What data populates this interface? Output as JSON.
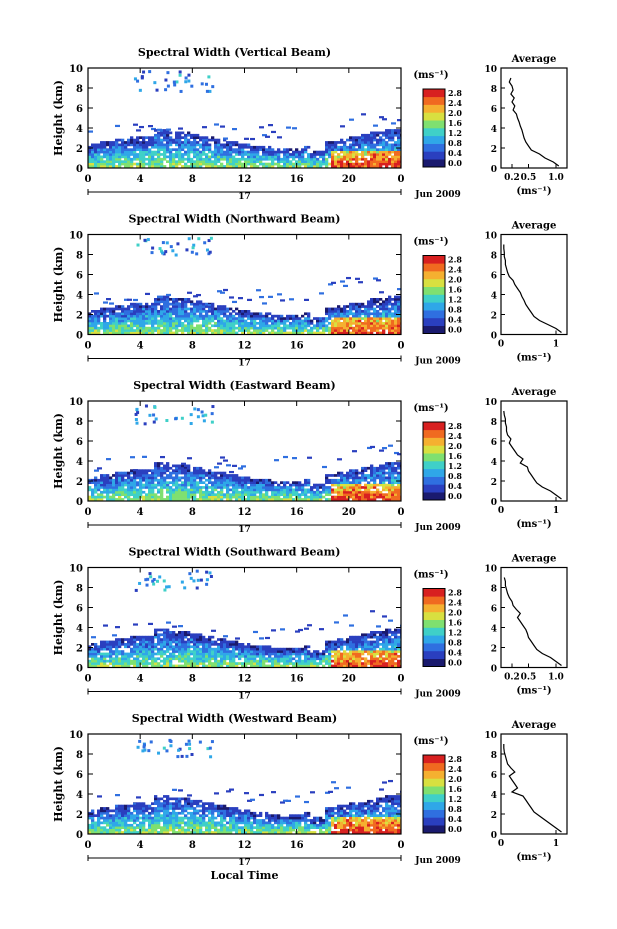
{
  "figure": {
    "xlabel": "Local Time"
  },
  "colorbar": {
    "unit_label": "(ms⁻¹)",
    "ticks": [
      "0.0",
      "0.4",
      "0.8",
      "1.2",
      "1.6",
      "2.0",
      "2.4",
      "2.8"
    ],
    "colors": [
      "#1a1a6e",
      "#2a3fbf",
      "#2f6fe0",
      "#2fa7e8",
      "#3fd0c8",
      "#7fe070",
      "#d8e040",
      "#f5b030",
      "#f06a20",
      "#d82020"
    ]
  },
  "chart_data": [
    {
      "type": "heatmap",
      "title": "Spectral Width (Vertical Beam)",
      "ylabel": "Height (km)",
      "x_ticks": [
        "0",
        "4",
        "8",
        "12",
        "16",
        "20",
        "0"
      ],
      "y_ticks": [
        "0",
        "2",
        "4",
        "6",
        "8",
        "10"
      ],
      "xlim": [
        0,
        24
      ],
      "ylim": [
        0,
        10
      ],
      "date_label": "Jun 2009",
      "day_label": "17",
      "average": {
        "title": "Average",
        "xlabel": "(ms⁻¹)",
        "x_ticks": [
          "0.2",
          "0.5",
          "1.0"
        ],
        "xlim": [
          0.0,
          1.2
        ],
        "height_km": [
          0.2,
          0.6,
          1.0,
          1.4,
          1.8,
          2.2,
          2.6,
          3.0,
          3.4,
          3.8,
          4.2,
          4.6,
          5.0,
          5.4,
          5.8,
          6.2,
          6.6,
          7.0,
          7.4,
          7.8,
          8.2,
          8.6,
          9.0
        ],
        "width_ms": [
          1.05,
          0.95,
          0.8,
          0.7,
          0.55,
          0.5,
          0.45,
          0.42,
          0.4,
          0.38,
          0.35,
          0.33,
          0.3,
          0.28,
          0.22,
          0.25,
          0.2,
          0.24,
          0.18,
          0.22,
          0.2,
          0.15,
          0.18
        ]
      }
    },
    {
      "type": "heatmap",
      "title": "Spectral Width (Northward Beam)",
      "ylabel": "Height (km)",
      "x_ticks": [
        "0",
        "4",
        "8",
        "12",
        "16",
        "20",
        "0"
      ],
      "y_ticks": [
        "0",
        "2",
        "4",
        "6",
        "8",
        "10"
      ],
      "xlim": [
        0,
        24
      ],
      "ylim": [
        0,
        10
      ],
      "date_label": "Jun 2009",
      "day_label": "17",
      "average": {
        "title": "Average",
        "xlabel": "(ms⁻¹)",
        "x_ticks": [
          "0",
          "1"
        ],
        "xlim": [
          0.0,
          1.2
        ],
        "height_km": [
          0.2,
          0.6,
          1.0,
          1.4,
          1.8,
          2.2,
          2.6,
          3.0,
          3.4,
          3.8,
          4.2,
          4.6,
          5.0,
          5.4,
          5.8,
          6.2,
          6.6,
          7.0,
          7.4,
          7.8,
          8.2,
          8.6,
          9.0
        ],
        "width_ms": [
          1.1,
          1.0,
          0.85,
          0.7,
          0.6,
          0.55,
          0.5,
          0.45,
          0.42,
          0.38,
          0.35,
          0.3,
          0.25,
          0.22,
          0.15,
          0.12,
          0.1,
          0.08,
          0.08,
          0.06,
          0.06,
          0.05,
          0.05
        ]
      }
    },
    {
      "type": "heatmap",
      "title": "Spectral Width (Eastward Beam)",
      "ylabel": "Height (km)",
      "x_ticks": [
        "0",
        "4",
        "8",
        "12",
        "16",
        "20",
        "0"
      ],
      "y_ticks": [
        "0",
        "2",
        "4",
        "6",
        "8",
        "10"
      ],
      "xlim": [
        0,
        24
      ],
      "ylim": [
        0,
        10
      ],
      "date_label": "Jun 2009",
      "day_label": "17",
      "average": {
        "title": "Average",
        "xlabel": "(ms⁻¹)",
        "x_ticks": [
          "0",
          "1"
        ],
        "xlim": [
          0.0,
          1.2
        ],
        "height_km": [
          0.2,
          0.6,
          1.0,
          1.4,
          1.8,
          2.2,
          2.6,
          3.0,
          3.4,
          3.8,
          4.2,
          4.6,
          5.0,
          5.4,
          5.8,
          6.2,
          6.6,
          7.0,
          7.4,
          7.8,
          8.2,
          8.6,
          9.0
        ],
        "width_ms": [
          1.1,
          1.0,
          0.9,
          0.75,
          0.65,
          0.6,
          0.55,
          0.5,
          0.48,
          0.35,
          0.4,
          0.3,
          0.25,
          0.2,
          0.15,
          0.18,
          0.12,
          0.1,
          0.1,
          0.08,
          0.08,
          0.06,
          0.05
        ]
      }
    },
    {
      "type": "heatmap",
      "title": "Spectral Width (Southward Beam)",
      "ylabel": "Height (km)",
      "x_ticks": [
        "0",
        "4",
        "8",
        "12",
        "16",
        "20",
        "0"
      ],
      "y_ticks": [
        "0",
        "2",
        "4",
        "6",
        "8",
        "10"
      ],
      "xlim": [
        0,
        24
      ],
      "ylim": [
        0,
        10
      ],
      "date_label": "Jun 2009",
      "day_label": "17",
      "average": {
        "title": "Average",
        "xlabel": "(ms⁻¹)",
        "x_ticks": [
          "0.2",
          "0.5",
          "1.0"
        ],
        "xlim": [
          0.0,
          1.2
        ],
        "height_km": [
          0.2,
          0.6,
          1.0,
          1.4,
          1.8,
          2.2,
          2.6,
          3.0,
          3.4,
          3.8,
          4.2,
          4.6,
          5.0,
          5.4,
          5.8,
          6.2,
          6.6,
          7.0,
          7.4,
          7.8,
          8.2,
          8.6,
          9.0
        ],
        "width_ms": [
          1.1,
          1.0,
          0.9,
          0.75,
          0.65,
          0.6,
          0.55,
          0.5,
          0.48,
          0.45,
          0.4,
          0.35,
          0.3,
          0.35,
          0.28,
          0.22,
          0.2,
          0.15,
          0.12,
          0.1,
          0.08,
          0.08,
          0.06
        ]
      }
    },
    {
      "type": "heatmap",
      "title": "Spectral Width (Westward Beam)",
      "ylabel": "Height (km)",
      "x_ticks": [
        "0",
        "4",
        "8",
        "12",
        "16",
        "20",
        "0"
      ],
      "y_ticks": [
        "0",
        "2",
        "4",
        "6",
        "8",
        "10"
      ],
      "xlim": [
        0,
        24
      ],
      "ylim": [
        0,
        10
      ],
      "date_label": "Jun 2009",
      "day_label": "17",
      "average": {
        "title": "Average",
        "xlabel": "(ms⁻¹)",
        "x_ticks": [
          "0",
          "1"
        ],
        "xlim": [
          0.0,
          1.2
        ],
        "height_km": [
          0.2,
          0.6,
          1.0,
          1.4,
          1.8,
          2.2,
          2.6,
          3.0,
          3.4,
          3.8,
          4.2,
          4.6,
          5.0,
          5.4,
          5.8,
          6.2,
          6.6,
          7.0,
          7.4,
          7.8,
          8.2,
          8.6,
          9.0
        ],
        "width_ms": [
          1.1,
          1.0,
          0.9,
          0.8,
          0.7,
          0.6,
          0.55,
          0.5,
          0.45,
          0.4,
          0.2,
          0.3,
          0.25,
          0.2,
          0.15,
          0.25,
          0.18,
          0.12,
          0.1,
          0.08,
          0.06,
          0.05,
          0.05
        ]
      }
    }
  ]
}
